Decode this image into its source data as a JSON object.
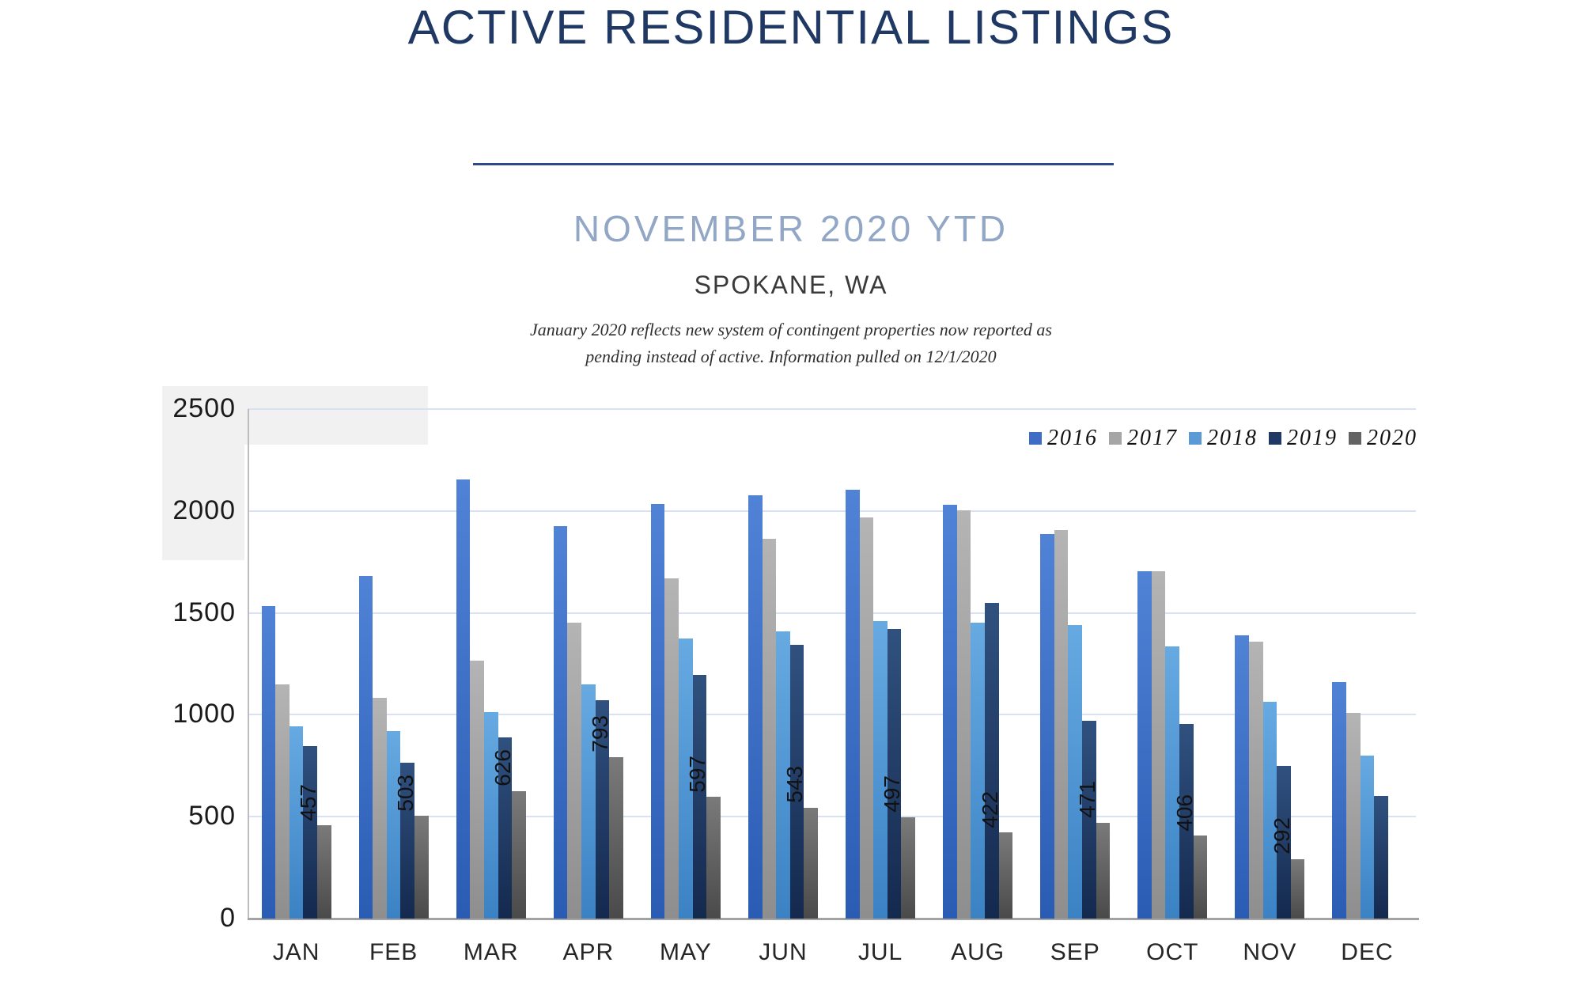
{
  "header": {
    "title": "ACTIVE RESIDENTIAL LISTINGS",
    "subtitle": "NOVEMBER 2020 YTD",
    "location": "SPOKANE, WA",
    "note_line1": "January 2020 reflects new system of contingent properties now reported as",
    "note_line2": "pending instead of active.  Information pulled on 12/1/2020"
  },
  "chart_data": {
    "type": "bar",
    "title": "Active Residential Listings by month, Spokane WA",
    "categories": [
      "JAN",
      "FEB",
      "MAR",
      "APR",
      "MAY",
      "JUN",
      "JUL",
      "AUG",
      "SEP",
      "OCT",
      "NOV",
      "DEC"
    ],
    "series": [
      {
        "name": "2016",
        "legend_color": "#3D6DC5",
        "color_top": "#5082D6",
        "color_bottom": "#2A5CB4",
        "values": [
          1535,
          1680,
          2155,
          1925,
          2035,
          2075,
          2105,
          2030,
          1885,
          1705,
          1390,
          1160
        ]
      },
      {
        "name": "2017",
        "legend_color": "#A6A6A6",
        "color_top": "#B4B4B4",
        "color_bottom": "#8E8E8E",
        "values": [
          1150,
          1085,
          1265,
          1450,
          1670,
          1865,
          1970,
          2005,
          1905,
          1705,
          1360,
          1010
        ]
      },
      {
        "name": "2018",
        "legend_color": "#5B9BD5",
        "color_top": "#67AAE2",
        "color_bottom": "#3B82C4",
        "values": [
          945,
          920,
          1015,
          1150,
          1375,
          1410,
          1460,
          1450,
          1440,
          1335,
          1065,
          800
        ]
      },
      {
        "name": "2019",
        "legend_color": "#1F3864",
        "color_top": "#30517F",
        "color_bottom": "#14294E",
        "values": [
          845,
          765,
          890,
          1070,
          1195,
          1345,
          1420,
          1550,
          970,
          955,
          750,
          600
        ]
      },
      {
        "name": "2020",
        "legend_color": "#636363",
        "color_top": "#7A7A7A",
        "color_bottom": "#4A4A4A",
        "values": [
          457,
          503,
          626,
          793,
          597,
          543,
          497,
          422,
          471,
          406,
          292,
          null
        ]
      }
    ],
    "data_labels_series": "2020",
    "data_labels": [
      "457",
      "503",
      "626",
      "793",
      "597",
      "543",
      "497",
      "422",
      "471",
      "406",
      "292",
      null
    ],
    "y_ticks": [
      "2500",
      "2000",
      "1500",
      "1000",
      "500",
      "0"
    ],
    "ylim": [
      0,
      2500
    ],
    "grid": true,
    "legend_position": "top-right",
    "xlabel": "",
    "ylabel": ""
  }
}
